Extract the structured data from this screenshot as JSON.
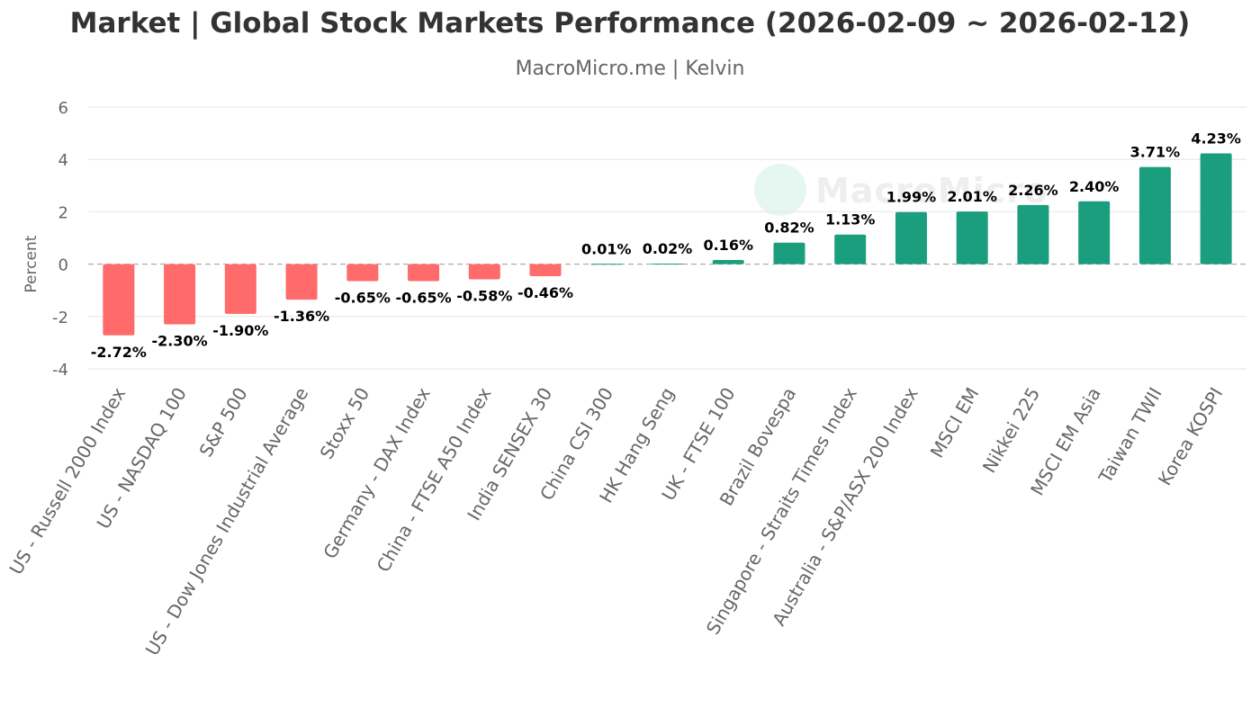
{
  "title": "Market | Global Stock Markets Performance (2026-02-09 ~ 2026-02-12)",
  "subtitle": "MacroMicro.me | Kelvin",
  "watermark": "MacroMicro",
  "colors": {
    "positive": "#1a9e7e",
    "negative": "#ff6b6b",
    "grid": "#e6e6e6",
    "zero_line": "#999999",
    "text": "#666666",
    "label": "#000000"
  },
  "chart_data": {
    "type": "bar",
    "ylabel": "Percent",
    "ylim": [
      -4,
      6
    ],
    "yticks": [
      -4,
      -2,
      0,
      2,
      4,
      6
    ],
    "grid": true,
    "categories": [
      "US - Russell 2000 Index",
      "US - NASDAQ 100",
      "S&P 500",
      "US - Dow Jones Industrial Average",
      "Stoxx 50",
      "Germany - DAX Index",
      "China - FTSE A50 Index",
      "India SENSEX 30",
      "China CSI 300",
      "HK Hang Seng",
      "UK - FTSE 100",
      "Brazil Bovespa",
      "Singapore - Straits Times Index",
      "Australia - S&P/ASX 200 Index",
      "MSCI EM",
      "Nikkei 225",
      "MSCI EM Asia",
      "Taiwan TWII",
      "Korea KOSPI"
    ],
    "values": [
      -2.72,
      -2.3,
      -1.9,
      -1.36,
      -0.65,
      -0.65,
      -0.58,
      -0.46,
      0.01,
      0.02,
      0.16,
      0.82,
      1.13,
      1.99,
      2.01,
      2.26,
      2.4,
      3.71,
      4.23
    ],
    "data_labels": [
      "-2.72%",
      "-2.30%",
      "-1.90%",
      "-1.36%",
      "-0.65%",
      "-0.65%",
      "-0.58%",
      "-0.46%",
      "0.01%",
      "0.02%",
      "0.16%",
      "0.82%",
      "1.13%",
      "1.99%",
      "2.01%",
      "2.26%",
      "2.40%",
      "3.71%",
      "4.23%"
    ]
  }
}
